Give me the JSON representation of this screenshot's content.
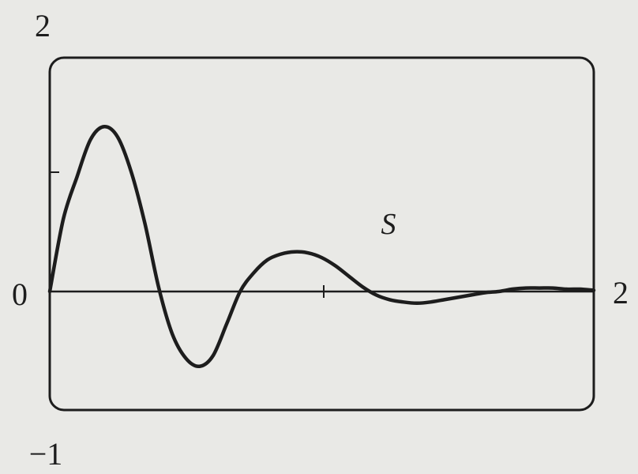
{
  "chart_data": {
    "type": "line",
    "title": "",
    "xlabel": "",
    "ylabel": "",
    "xlim": [
      0,
      2
    ],
    "ylim": [
      -1,
      2
    ],
    "grid": false,
    "tick_labels": {
      "y_top": "2",
      "y_bottom": "−1",
      "x_left": "0",
      "x_right": "2"
    },
    "series": [
      {
        "name": "S",
        "x": [
          0,
          0.05,
          0.1,
          0.15,
          0.2,
          0.25,
          0.3,
          0.35,
          0.4,
          0.45,
          0.5,
          0.55,
          0.6,
          0.65,
          0.7,
          0.75,
          0.8,
          0.85,
          0.9,
          0.95,
          1.0,
          1.05,
          1.1,
          1.15,
          1.2,
          1.25,
          1.3,
          1.35,
          1.4,
          1.45,
          1.5,
          1.55,
          1.6,
          1.65,
          1.7,
          1.75,
          1.8,
          1.85,
          1.9,
          1.95,
          2.0
        ],
        "y": [
          0,
          0.62,
          0.98,
          1.3,
          1.41,
          1.32,
          1.02,
          0.58,
          0.04,
          -0.36,
          -0.57,
          -0.64,
          -0.55,
          -0.28,
          0.0,
          0.16,
          0.27,
          0.32,
          0.34,
          0.33,
          0.29,
          0.22,
          0.13,
          0.04,
          -0.03,
          -0.07,
          -0.09,
          -0.1,
          -0.09,
          -0.07,
          -0.05,
          -0.03,
          -0.01,
          0.0,
          0.02,
          0.03,
          0.03,
          0.03,
          0.02,
          0.02,
          0.01
        ]
      }
    ]
  }
}
